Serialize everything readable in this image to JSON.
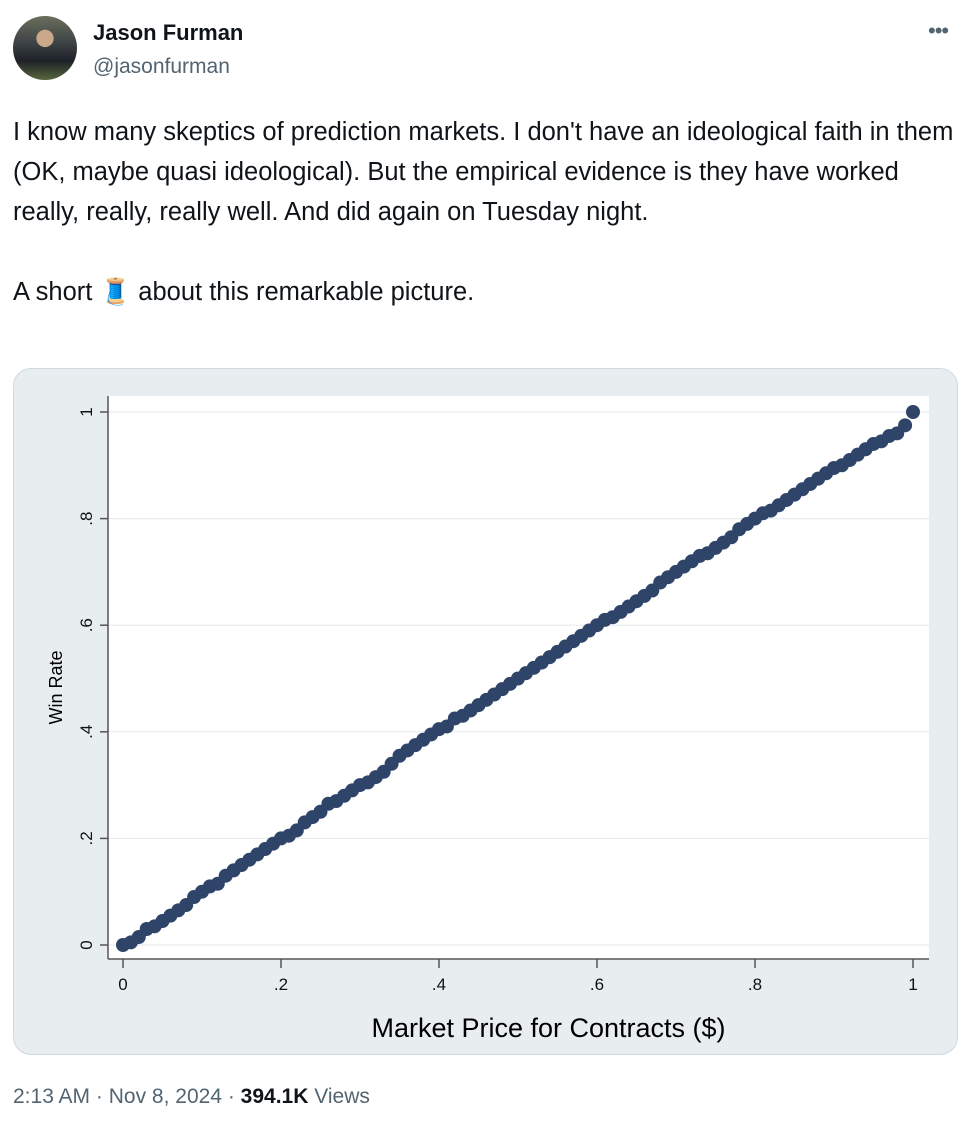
{
  "author": {
    "name": "Jason Furman",
    "handle": "@jasonfurman"
  },
  "more_icon": "•••",
  "tweet_text": "I know many skeptics of prediction markets. I don't have an ideological faith in them (OK, maybe quasi ideological). But the empirical evidence is they have worked really, really, really well. And did again on Tuesday night.\n\nA short 🧵 about this remarkable picture.",
  "meta": {
    "time": "2:13 AM",
    "date": "Nov 8, 2024",
    "views_count": "394.1K",
    "views_label": "Views",
    "sep": " · "
  },
  "chart_data": {
    "type": "scatter",
    "title": "",
    "xlabel": "Market Price for Contracts ($)",
    "ylabel": "Win Rate",
    "xlim": [
      0,
      1
    ],
    "ylim": [
      0,
      1
    ],
    "xticks": [
      {
        "v": 0,
        "label": "0"
      },
      {
        "v": 0.2,
        "label": ".2"
      },
      {
        "v": 0.4,
        "label": ".4"
      },
      {
        "v": 0.6,
        "label": ".6"
      },
      {
        "v": 0.8,
        "label": ".8"
      },
      {
        "v": 1,
        "label": "1"
      }
    ],
    "yticks": [
      {
        "v": 0,
        "label": "0"
      },
      {
        "v": 0.2,
        "label": ".2"
      },
      {
        "v": 0.4,
        "label": ".4"
      },
      {
        "v": 0.6,
        "label": ".6"
      },
      {
        "v": 0.8,
        "label": ".8"
      },
      {
        "v": 1,
        "label": "1"
      }
    ],
    "grid": "horizontal",
    "marker_color": "#2e4468",
    "y": [
      0,
      0.005,
      0.015,
      0.03,
      0.035,
      0.045,
      0.055,
      0.065,
      0.075,
      0.09,
      0.1,
      0.11,
      0.115,
      0.13,
      0.14,
      0.15,
      0.16,
      0.17,
      0.18,
      0.19,
      0.2,
      0.205,
      0.215,
      0.23,
      0.24,
      0.25,
      0.265,
      0.27,
      0.28,
      0.29,
      0.3,
      0.305,
      0.315,
      0.325,
      0.34,
      0.355,
      0.365,
      0.375,
      0.385,
      0.395,
      0.405,
      0.41,
      0.425,
      0.43,
      0.44,
      0.45,
      0.46,
      0.47,
      0.48,
      0.49,
      0.5,
      0.51,
      0.52,
      0.53,
      0.54,
      0.55,
      0.56,
      0.57,
      0.58,
      0.59,
      0.6,
      0.61,
      0.615,
      0.625,
      0.635,
      0.645,
      0.655,
      0.665,
      0.68,
      0.69,
      0.7,
      0.71,
      0.72,
      0.73,
      0.735,
      0.745,
      0.755,
      0.765,
      0.78,
      0.79,
      0.8,
      0.81,
      0.815,
      0.825,
      0.835,
      0.845,
      0.855,
      0.865,
      0.875,
      0.885,
      0.895,
      0.9,
      0.91,
      0.92,
      0.93,
      0.94,
      0.945,
      0.955,
      0.96,
      0.975,
      1.0
    ]
  }
}
